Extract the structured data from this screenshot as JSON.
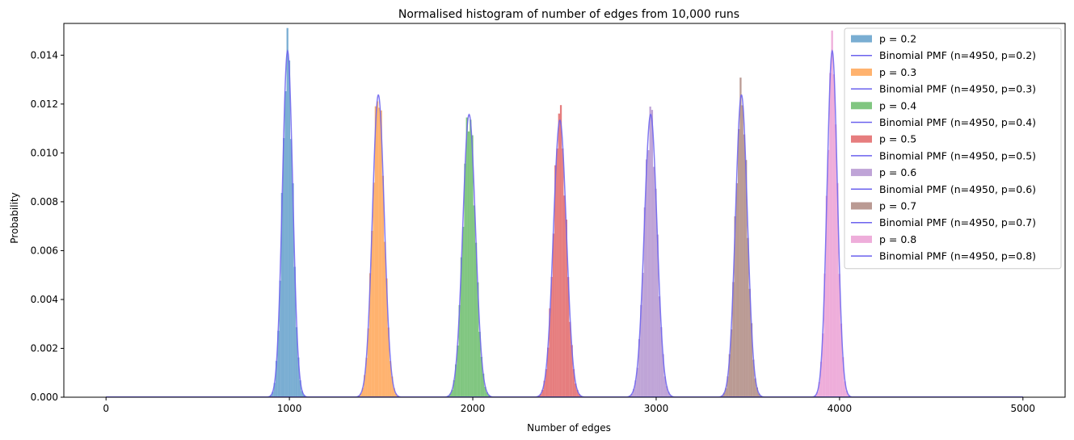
{
  "chart_data": {
    "type": "bar",
    "title": "Normalised histogram of number of edges from 10,000 runs",
    "xlabel": "Number of edges",
    "ylabel": "Probability",
    "xlim": [
      -230,
      5230
    ],
    "ylim": [
      0,
      0.0153
    ],
    "xticks": [
      0,
      1000,
      2000,
      3000,
      4000,
      5000
    ],
    "xtick_labels": [
      "0",
      "1000",
      "2000",
      "3000",
      "4000",
      "5000"
    ],
    "yticks": [
      0.0,
      0.002,
      0.004,
      0.006,
      0.008,
      0.01,
      0.012,
      0.014
    ],
    "ytick_labels": [
      "0.000",
      "0.002",
      "0.004",
      "0.006",
      "0.008",
      "0.010",
      "0.012",
      "0.014"
    ],
    "grid": false,
    "legend_position": "top-right",
    "n": 4950,
    "pmf_color": "#6b62ee",
    "series": [
      {
        "name": "p = 0.2",
        "p": 0.2,
        "peak": 0.0145,
        "color": "#1f77b4"
      },
      {
        "name": "p = 0.3",
        "p": 0.3,
        "peak": 0.012,
        "color": "#ff7f0e"
      },
      {
        "name": "p = 0.4",
        "p": 0.4,
        "peak": 0.0109,
        "color": "#2ca02c"
      },
      {
        "name": "p = 0.5",
        "p": 0.5,
        "peak": 0.0117,
        "color": "#d62728"
      },
      {
        "name": "p = 0.6",
        "p": 0.6,
        "peak": 0.0111,
        "color": "#9467bd"
      },
      {
        "name": "p = 0.7",
        "p": 0.7,
        "peak": 0.0121,
        "color": "#8c564b"
      },
      {
        "name": "p = 0.8",
        "p": 0.8,
        "peak": 0.0139,
        "color": "#e377c2"
      }
    ],
    "pmf_labels": [
      "Binomial PMF (n=4950, p=0.2)",
      "Binomial PMF (n=4950, p=0.3)",
      "Binomial PMF (n=4950, p=0.4)",
      "Binomial PMF (n=4950, p=0.5)",
      "Binomial PMF (n=4950, p=0.6)",
      "Binomial PMF (n=4950, p=0.7)",
      "Binomial PMF (n=4950, p=0.8)"
    ]
  }
}
